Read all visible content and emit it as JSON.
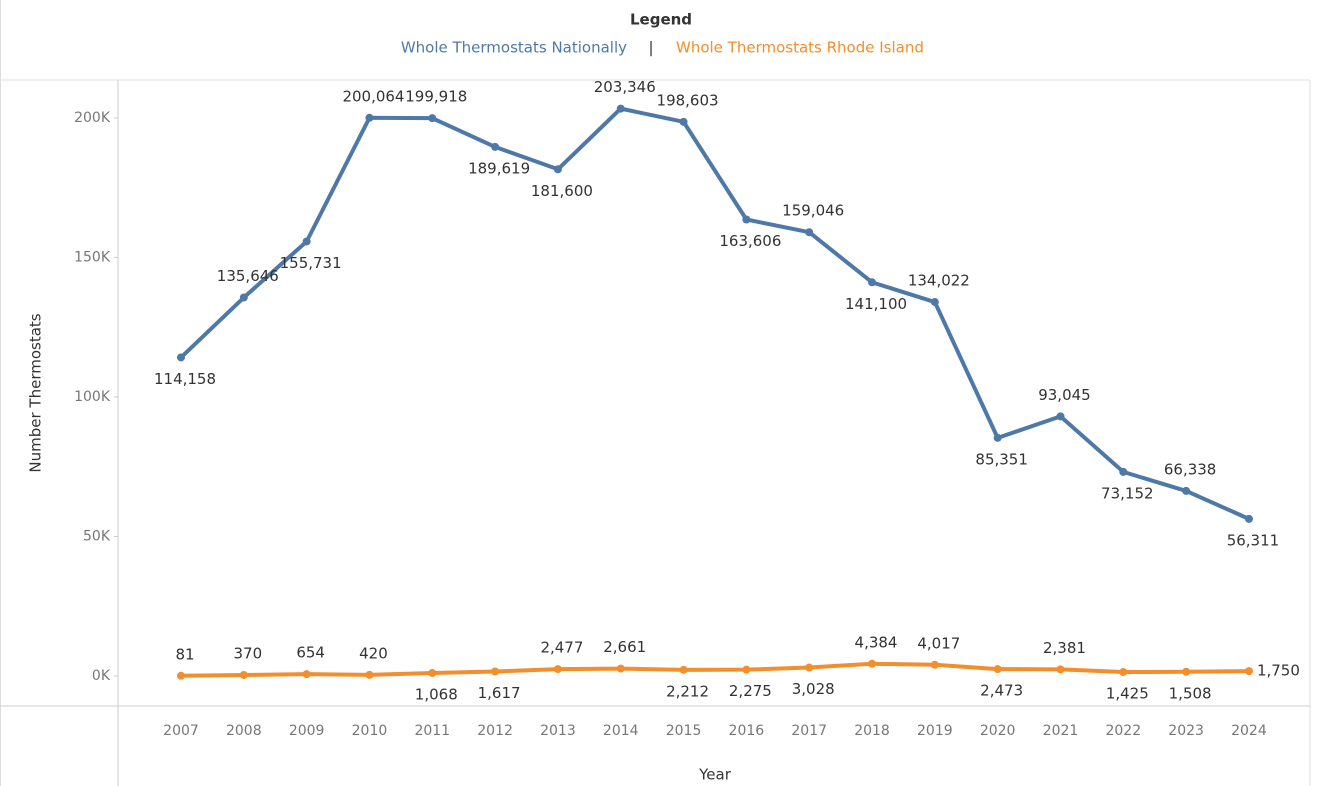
{
  "chart_data": {
    "type": "line",
    "legend_title": "Legend",
    "x_label": "Year",
    "y_label": "Number Thermostats",
    "categories": [
      "2007",
      "2008",
      "2009",
      "2010",
      "2011",
      "2012",
      "2013",
      "2014",
      "2015",
      "2016",
      "2017",
      "2018",
      "2019",
      "2020",
      "2021",
      "2022",
      "2023",
      "2024"
    ],
    "series": [
      {
        "name": "Whole Thermostats Nationally",
        "color": "#4e79a7",
        "values": [
          114158,
          135646,
          155731,
          200064,
          199918,
          189619,
          181600,
          203346,
          198603,
          163606,
          159046,
          141100,
          134022,
          85351,
          93045,
          73152,
          66338,
          56311
        ],
        "value_labels": [
          "114,158",
          "135,646",
          "155,731",
          "200,064",
          "199,918",
          "189,619",
          "181,600",
          "203,346",
          "198,603",
          "163,606",
          "159,046",
          "141,100",
          "134,022",
          "85,351",
          "93,045",
          "73,152",
          "66,338",
          "56,311"
        ]
      },
      {
        "name": "Whole Thermostats Rhode Island",
        "color": "#f28e2b",
        "values": [
          81,
          370,
          654,
          420,
          1068,
          1617,
          2477,
          2661,
          2212,
          2275,
          3028,
          4384,
          4017,
          2473,
          2381,
          1425,
          1508,
          1750
        ],
        "value_labels": [
          "81",
          "370",
          "654",
          "420",
          "1,068",
          "1,617",
          "2,477",
          "2,661",
          "2,212",
          "2,275",
          "3,028",
          "4,384",
          "4,017",
          "2,473",
          "2,381",
          "1,425",
          "1,508",
          "1,750"
        ]
      }
    ],
    "ylim": [
      -10750,
      213600
    ],
    "yticks": [
      {
        "value": 0,
        "label": "0K"
      },
      {
        "value": 50000,
        "label": "50K"
      },
      {
        "value": 100000,
        "label": "100K"
      },
      {
        "value": 150000,
        "label": "150K"
      },
      {
        "value": 200000,
        "label": "200K"
      }
    ],
    "grid": false
  }
}
